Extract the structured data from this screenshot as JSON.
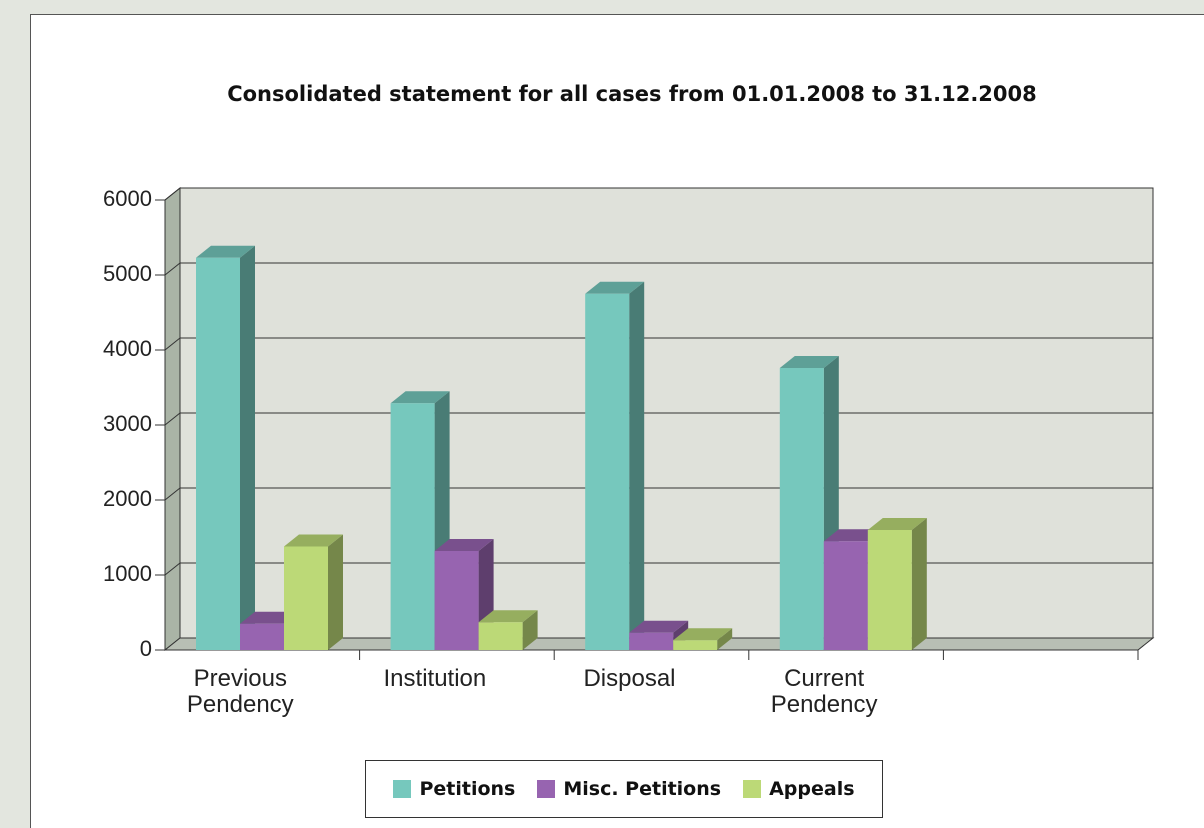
{
  "chart_data": {
    "type": "bar3d",
    "title": "Consolidated statement for all cases from 01.01.2008 to 31.12.2008",
    "categories": [
      "Previous Pendency",
      "Institution",
      "Disposal",
      "Current Pendency",
      null
    ],
    "series": [
      {
        "name": "Petitions",
        "color": "#76c8bd",
        "values": [
          5230,
          3290,
          4750,
          3760,
          null
        ]
      },
      {
        "name": "Misc. Petitions",
        "color": "#9764b0",
        "values": [
          350,
          1320,
          230,
          1450,
          null
        ]
      },
      {
        "name": "Appeals",
        "color": "#bcd977",
        "values": [
          1380,
          370,
          130,
          1600,
          null
        ]
      }
    ],
    "ylim": [
      0,
      6000
    ],
    "yticks": [
      0,
      1000,
      2000,
      3000,
      4000,
      5000,
      6000
    ],
    "grid": true
  }
}
